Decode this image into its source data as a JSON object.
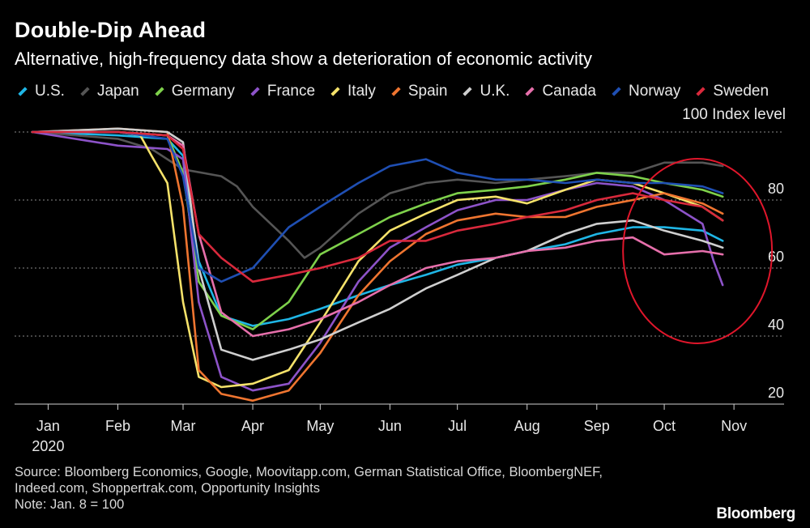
{
  "header": {
    "title": "Double-Dip Ahead",
    "subtitle": "Alternative, high-frequency data show a deterioration of economic activity"
  },
  "index_label": "100 Index level",
  "footer": {
    "source_line1": "Source: Bloomberg Economics, Google, Moovitapp.com, German Statistical Office, BloombergNEF,",
    "source_line2": "Indeed.com, Shoppertrak.com, Opportunity Insights",
    "note": "Note: Jan. 8 = 100"
  },
  "brand": "Bloomberg",
  "colors": {
    "background": "#000000",
    "grid": "#8a8a8a",
    "annotation_circle": "#e0162b"
  },
  "chart_data": {
    "type": "line",
    "title": "Double-Dip Ahead",
    "subtitle": "Alternative, high-frequency data show a deterioration of economic activity",
    "ylabel": "100 Index level",
    "note": "Jan. 8 = 100",
    "y_ticks": [
      20,
      40,
      60,
      80
    ],
    "ylim": [
      17,
      100
    ],
    "x_range": [
      "2020-01-08",
      "2020-11-20"
    ],
    "x_ticks": [
      {
        "date": "2020-01-15",
        "label": "Jan",
        "sublabel": "2020"
      },
      {
        "date": "2020-02-15",
        "label": "Feb"
      },
      {
        "date": "2020-03-15",
        "label": "Mar"
      },
      {
        "date": "2020-04-15",
        "label": "Apr"
      },
      {
        "date": "2020-05-15",
        "label": "May"
      },
      {
        "date": "2020-06-15",
        "label": "Jun"
      },
      {
        "date": "2020-07-15",
        "label": "Jul"
      },
      {
        "date": "2020-08-15",
        "label": "Aug"
      },
      {
        "date": "2020-09-15",
        "label": "Sep"
      },
      {
        "date": "2020-10-15",
        "label": "Oct"
      },
      {
        "date": "2020-11-15",
        "label": "Nov"
      }
    ],
    "grid": "horizontal dotted",
    "legend_position": "top",
    "annotation": {
      "type": "circle",
      "around": "October–November values"
    },
    "series": [
      {
        "name": "U.S.",
        "color": "#1fb6e6",
        "points": [
          [
            "2020-01-08",
            100
          ],
          [
            "2020-02-15",
            99
          ],
          [
            "2020-03-08",
            98
          ],
          [
            "2020-03-15",
            93
          ],
          [
            "2020-03-22",
            62
          ],
          [
            "2020-04-01",
            46
          ],
          [
            "2020-04-15",
            43
          ],
          [
            "2020-05-01",
            45
          ],
          [
            "2020-05-15",
            48
          ],
          [
            "2020-06-01",
            52
          ],
          [
            "2020-06-15",
            55
          ],
          [
            "2020-07-01",
            58
          ],
          [
            "2020-07-15",
            61
          ],
          [
            "2020-08-01",
            63
          ],
          [
            "2020-08-15",
            65
          ],
          [
            "2020-09-01",
            67
          ],
          [
            "2020-09-15",
            70
          ],
          [
            "2020-10-01",
            72
          ],
          [
            "2020-10-15",
            72
          ],
          [
            "2020-11-01",
            71
          ],
          [
            "2020-11-10",
            68
          ]
        ]
      },
      {
        "name": "Japan",
        "color": "#555555",
        "points": [
          [
            "2020-01-08",
            100
          ],
          [
            "2020-02-15",
            98
          ],
          [
            "2020-03-01",
            95
          ],
          [
            "2020-03-15",
            89
          ],
          [
            "2020-04-01",
            87
          ],
          [
            "2020-04-08",
            84
          ],
          [
            "2020-04-15",
            78
          ],
          [
            "2020-05-01",
            68
          ],
          [
            "2020-05-08",
            63
          ],
          [
            "2020-05-15",
            66
          ],
          [
            "2020-06-01",
            76
          ],
          [
            "2020-06-15",
            82
          ],
          [
            "2020-07-01",
            85
          ],
          [
            "2020-07-15",
            86
          ],
          [
            "2020-08-01",
            85
          ],
          [
            "2020-08-15",
            86
          ],
          [
            "2020-09-01",
            87
          ],
          [
            "2020-09-15",
            88
          ],
          [
            "2020-10-01",
            88
          ],
          [
            "2020-10-15",
            91
          ],
          [
            "2020-11-01",
            91
          ],
          [
            "2020-11-10",
            90
          ]
        ]
      },
      {
        "name": "Germany",
        "color": "#7ed14b",
        "points": [
          [
            "2020-01-08",
            100
          ],
          [
            "2020-02-15",
            100
          ],
          [
            "2020-03-08",
            99
          ],
          [
            "2020-03-15",
            88
          ],
          [
            "2020-03-22",
            56
          ],
          [
            "2020-04-01",
            46
          ],
          [
            "2020-04-15",
            42
          ],
          [
            "2020-05-01",
            50
          ],
          [
            "2020-05-15",
            64
          ],
          [
            "2020-06-01",
            70
          ],
          [
            "2020-06-15",
            75
          ],
          [
            "2020-07-01",
            79
          ],
          [
            "2020-07-15",
            82
          ],
          [
            "2020-08-01",
            83
          ],
          [
            "2020-08-15",
            84
          ],
          [
            "2020-09-01",
            86
          ],
          [
            "2020-09-15",
            88
          ],
          [
            "2020-10-01",
            87
          ],
          [
            "2020-10-15",
            85
          ],
          [
            "2020-11-01",
            83
          ],
          [
            "2020-11-10",
            81
          ]
        ]
      },
      {
        "name": "France",
        "color": "#8d53c9",
        "points": [
          [
            "2020-01-08",
            100
          ],
          [
            "2020-02-15",
            96
          ],
          [
            "2020-03-08",
            95
          ],
          [
            "2020-03-15",
            92
          ],
          [
            "2020-03-22",
            50
          ],
          [
            "2020-04-01",
            28
          ],
          [
            "2020-04-15",
            24
          ],
          [
            "2020-05-01",
            26
          ],
          [
            "2020-05-15",
            38
          ],
          [
            "2020-06-01",
            56
          ],
          [
            "2020-06-15",
            66
          ],
          [
            "2020-07-01",
            72
          ],
          [
            "2020-07-15",
            77
          ],
          [
            "2020-08-01",
            80
          ],
          [
            "2020-08-15",
            80
          ],
          [
            "2020-09-01",
            83
          ],
          [
            "2020-09-15",
            85
          ],
          [
            "2020-10-01",
            84
          ],
          [
            "2020-10-15",
            80
          ],
          [
            "2020-11-01",
            73
          ],
          [
            "2020-11-06",
            62
          ],
          [
            "2020-11-10",
            55
          ]
        ]
      },
      {
        "name": "Italy",
        "color": "#f5e26a",
        "points": [
          [
            "2020-01-08",
            100
          ],
          [
            "2020-02-15",
            100
          ],
          [
            "2020-02-25",
            99
          ],
          [
            "2020-03-01",
            93
          ],
          [
            "2020-03-08",
            85
          ],
          [
            "2020-03-15",
            50
          ],
          [
            "2020-03-22",
            28
          ],
          [
            "2020-04-01",
            25
          ],
          [
            "2020-04-15",
            26
          ],
          [
            "2020-05-01",
            30
          ],
          [
            "2020-05-15",
            44
          ],
          [
            "2020-06-01",
            62
          ],
          [
            "2020-06-15",
            71
          ],
          [
            "2020-07-01",
            76
          ],
          [
            "2020-07-15",
            80
          ],
          [
            "2020-08-01",
            81
          ],
          [
            "2020-08-15",
            79
          ],
          [
            "2020-09-01",
            83
          ],
          [
            "2020-09-15",
            86
          ],
          [
            "2020-10-01",
            85
          ],
          [
            "2020-10-15",
            82
          ],
          [
            "2020-11-01",
            78
          ],
          [
            "2020-11-10",
            74
          ]
        ]
      },
      {
        "name": "Spain",
        "color": "#ef7530",
        "points": [
          [
            "2020-01-08",
            100
          ],
          [
            "2020-02-15",
            101
          ],
          [
            "2020-03-08",
            100
          ],
          [
            "2020-03-15",
            78
          ],
          [
            "2020-03-22",
            30
          ],
          [
            "2020-04-01",
            23
          ],
          [
            "2020-04-15",
            21
          ],
          [
            "2020-05-01",
            24
          ],
          [
            "2020-05-15",
            35
          ],
          [
            "2020-06-01",
            52
          ],
          [
            "2020-06-15",
            62
          ],
          [
            "2020-07-01",
            70
          ],
          [
            "2020-07-15",
            74
          ],
          [
            "2020-08-01",
            76
          ],
          [
            "2020-08-15",
            75
          ],
          [
            "2020-09-01",
            75
          ],
          [
            "2020-09-15",
            78
          ],
          [
            "2020-10-01",
            80
          ],
          [
            "2020-10-15",
            82
          ],
          [
            "2020-11-01",
            79
          ],
          [
            "2020-11-10",
            76
          ]
        ]
      },
      {
        "name": "U.K.",
        "color": "#cfcfcf",
        "points": [
          [
            "2020-01-08",
            100
          ],
          [
            "2020-02-15",
            101
          ],
          [
            "2020-03-08",
            100
          ],
          [
            "2020-03-15",
            97
          ],
          [
            "2020-03-22",
            60
          ],
          [
            "2020-04-01",
            36
          ],
          [
            "2020-04-15",
            33
          ],
          [
            "2020-05-01",
            36
          ],
          [
            "2020-05-15",
            39
          ],
          [
            "2020-06-01",
            44
          ],
          [
            "2020-06-15",
            48
          ],
          [
            "2020-07-01",
            54
          ],
          [
            "2020-07-15",
            58
          ],
          [
            "2020-08-01",
            63
          ],
          [
            "2020-08-15",
            65
          ],
          [
            "2020-09-01",
            70
          ],
          [
            "2020-09-15",
            73
          ],
          [
            "2020-10-01",
            74
          ],
          [
            "2020-10-15",
            71
          ],
          [
            "2020-11-01",
            68
          ],
          [
            "2020-11-10",
            66
          ]
        ]
      },
      {
        "name": "Canada",
        "color": "#e66fab",
        "points": [
          [
            "2020-01-08",
            100
          ],
          [
            "2020-02-15",
            100
          ],
          [
            "2020-03-08",
            99
          ],
          [
            "2020-03-15",
            96
          ],
          [
            "2020-03-22",
            70
          ],
          [
            "2020-04-01",
            47
          ],
          [
            "2020-04-15",
            40
          ],
          [
            "2020-05-01",
            42
          ],
          [
            "2020-05-15",
            45
          ],
          [
            "2020-06-01",
            50
          ],
          [
            "2020-06-15",
            55
          ],
          [
            "2020-07-01",
            60
          ],
          [
            "2020-07-15",
            62
          ],
          [
            "2020-08-01",
            63
          ],
          [
            "2020-08-15",
            65
          ],
          [
            "2020-09-01",
            66
          ],
          [
            "2020-09-15",
            68
          ],
          [
            "2020-10-01",
            69
          ],
          [
            "2020-10-15",
            64
          ],
          [
            "2020-11-01",
            65
          ],
          [
            "2020-11-10",
            64
          ]
        ]
      },
      {
        "name": "Norway",
        "color": "#1f4fb3",
        "points": [
          [
            "2020-01-08",
            100
          ],
          [
            "2020-02-15",
            100
          ],
          [
            "2020-03-08",
            98
          ],
          [
            "2020-03-15",
            87
          ],
          [
            "2020-03-22",
            60
          ],
          [
            "2020-04-01",
            56
          ],
          [
            "2020-04-15",
            60
          ],
          [
            "2020-05-01",
            72
          ],
          [
            "2020-05-15",
            78
          ],
          [
            "2020-06-01",
            85
          ],
          [
            "2020-06-15",
            90
          ],
          [
            "2020-07-01",
            92
          ],
          [
            "2020-07-15",
            88
          ],
          [
            "2020-08-01",
            86
          ],
          [
            "2020-08-15",
            86
          ],
          [
            "2020-09-01",
            85
          ],
          [
            "2020-09-15",
            86
          ],
          [
            "2020-10-01",
            85
          ],
          [
            "2020-10-15",
            85
          ],
          [
            "2020-11-01",
            84
          ],
          [
            "2020-11-10",
            82
          ]
        ]
      },
      {
        "name": "Sweden",
        "color": "#d9293c",
        "points": [
          [
            "2020-01-08",
            100
          ],
          [
            "2020-02-15",
            100
          ],
          [
            "2020-03-08",
            99
          ],
          [
            "2020-03-15",
            95
          ],
          [
            "2020-03-22",
            70
          ],
          [
            "2020-04-01",
            63
          ],
          [
            "2020-04-15",
            56
          ],
          [
            "2020-05-01",
            58
          ],
          [
            "2020-05-15",
            60
          ],
          [
            "2020-06-01",
            63
          ],
          [
            "2020-06-15",
            68
          ],
          [
            "2020-07-01",
            68
          ],
          [
            "2020-07-15",
            71
          ],
          [
            "2020-08-01",
            73
          ],
          [
            "2020-08-15",
            75
          ],
          [
            "2020-09-01",
            77
          ],
          [
            "2020-09-15",
            80
          ],
          [
            "2020-10-01",
            82
          ],
          [
            "2020-10-15",
            80
          ],
          [
            "2020-11-01",
            78
          ],
          [
            "2020-11-10",
            74
          ]
        ]
      }
    ]
  }
}
